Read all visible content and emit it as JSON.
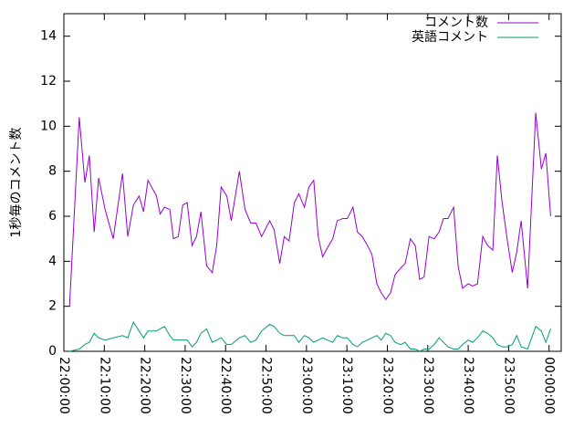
{
  "chart_data": {
    "type": "line",
    "ylabel": "1秒毎のコメント数",
    "x": [
      1.4,
      3.8,
      5.2,
      6.3,
      7.5,
      8.6,
      10.2,
      12.2,
      14.5,
      15.8,
      17.2,
      18.6,
      19.7,
      20.8,
      22.9,
      23.8,
      24.9,
      26.2,
      27.1,
      28.3,
      29.4,
      30.5,
      31.7,
      32.8,
      33.9,
      35.3,
      36.7,
      37.8,
      38.9,
      40.3,
      41.4,
      43.4,
      44.8,
      46.2,
      47.5,
      48.9,
      50.9,
      52.0,
      53.4,
      54.5,
      55.7,
      57.0,
      58.1,
      59.5,
      60.6,
      61.8,
      62.9,
      64.0,
      65.2,
      66.5,
      67.6,
      69.0,
      70.1,
      71.5,
      72.6,
      73.8,
      75.1,
      76.2,
      77.4,
      78.5,
      79.6,
      80.8,
      81.9,
      83.3,
      84.4,
      85.7,
      86.9,
      88.0,
      89.1,
      90.3,
      91.6,
      92.8,
      93.9,
      95.0,
      96.4,
      97.5,
      98.6,
      100.0,
      101.1,
      102.3,
      103.6,
      104.8,
      106.1,
      107.2,
      108.4,
      109.7,
      110.9,
      112.0,
      113.1,
      114.7,
      116.7,
      118.1,
      119.2,
      120.4
    ],
    "series": [
      {
        "name": "コメント数",
        "color": "#9400d3",
        "values": [
          2.0,
          10.4,
          7.5,
          8.7,
          5.3,
          7.7,
          6.3,
          5.0,
          7.9,
          5.1,
          6.5,
          6.9,
          6.2,
          7.6,
          6.9,
          6.1,
          6.4,
          6.3,
          5.0,
          5.1,
          6.5,
          6.6,
          4.7,
          5.1,
          6.2,
          3.8,
          3.5,
          4.7,
          7.3,
          6.9,
          5.8,
          8.0,
          6.3,
          5.7,
          5.7,
          5.1,
          5.8,
          5.4,
          3.9,
          5.1,
          4.9,
          6.6,
          7.0,
          6.4,
          7.3,
          7.6,
          5.1,
          4.2,
          4.6,
          5.0,
          5.8,
          5.9,
          5.9,
          6.4,
          5.3,
          5.1,
          4.7,
          4.3,
          3.0,
          2.6,
          2.3,
          2.6,
          3.4,
          3.7,
          3.9,
          5.0,
          4.7,
          3.2,
          3.3,
          5.1,
          5.0,
          5.3,
          5.9,
          5.9,
          6.4,
          3.8,
          2.8,
          3.0,
          2.9,
          3.0,
          5.1,
          4.7,
          4.5,
          8.7,
          6.6,
          4.9,
          3.5,
          4.4,
          5.8,
          2.8,
          10.6,
          8.1,
          8.8,
          6.0
        ]
      },
      {
        "name": "英語コメント",
        "color": "#009e73",
        "values": [
          0,
          0.1,
          0.3,
          0.4,
          0.8,
          0.6,
          0.5,
          0.6,
          0.7,
          0.6,
          1.3,
          0.9,
          0.6,
          0.9,
          0.9,
          1.0,
          1.1,
          0.7,
          0.5,
          0.5,
          0.5,
          0.5,
          0.2,
          0.4,
          0.8,
          1.0,
          0.4,
          0.5,
          0.6,
          0.3,
          0.3,
          0.6,
          0.7,
          0.4,
          0.5,
          0.9,
          1.2,
          1.1,
          0.8,
          0.7,
          0.7,
          0.7,
          0.4,
          0.7,
          0.6,
          0.4,
          0.5,
          0.6,
          0.5,
          0.4,
          0.7,
          0.6,
          0.6,
          0.3,
          0.2,
          0.4,
          0.5,
          0.6,
          0.7,
          0.5,
          0.8,
          0.7,
          0.4,
          0.3,
          0.4,
          0.1,
          0.1,
          0,
          0.1,
          0.1,
          0.3,
          0.6,
          0.4,
          0.2,
          0.1,
          0.1,
          0.3,
          0.5,
          0.4,
          0.6,
          0.9,
          0.8,
          0.6,
          0.3,
          0.2,
          0.2,
          0.3,
          0.7,
          0.2,
          0.1,
          1.1,
          0.9,
          0.4,
          1.0
        ]
      }
    ],
    "xlim": [
      0,
      123
    ],
    "xticks": [
      {
        "value": 0,
        "label": "22:00:00"
      },
      {
        "value": 10,
        "label": "22:10:00"
      },
      {
        "value": 20,
        "label": "22:20:00"
      },
      {
        "value": 30,
        "label": "22:30:00"
      },
      {
        "value": 40,
        "label": "22:40:00"
      },
      {
        "value": 50,
        "label": "22:50:00"
      },
      {
        "value": 60,
        "label": "23:00:00"
      },
      {
        "value": 70,
        "label": "23:10:00"
      },
      {
        "value": 80,
        "label": "23:20:00"
      },
      {
        "value": 90,
        "label": "23:30:00"
      },
      {
        "value": 100,
        "label": "23:40:00"
      },
      {
        "value": 110,
        "label": "23:50:00"
      },
      {
        "value": 120,
        "label": "00:00:00"
      }
    ],
    "ylim": [
      0,
      15
    ],
    "yticks": [
      0,
      2,
      4,
      6,
      8,
      10,
      12,
      14
    ],
    "legend": "top-right"
  }
}
